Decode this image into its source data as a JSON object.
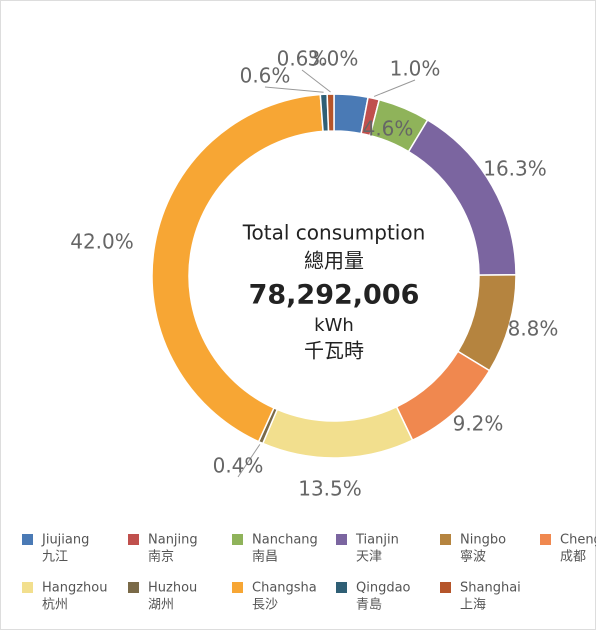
{
  "chart_data": {
    "type": "donut",
    "categories": [
      "Jiujiang",
      "Nanjing",
      "Nanchang",
      "Tianjin",
      "Ningbo",
      "Chengdu",
      "Hangzhou",
      "Huzhou",
      "Changsha",
      "Qingdao",
      "Shanghai"
    ],
    "categories_zh": [
      "九江",
      "南京",
      "南昌",
      "天津",
      "寧波",
      "成都",
      "杭州",
      "湖州",
      "長沙",
      "青島",
      "上海"
    ],
    "values": [
      3.0,
      1.0,
      4.6,
      16.3,
      8.8,
      9.2,
      13.5,
      0.4,
      42.0,
      0.6,
      0.6
    ],
    "value_labels": [
      "3.0%",
      "1.0%",
      "4.6%",
      "16.3%",
      "8.8%",
      "9.2%",
      "13.5%",
      "0.4%",
      "42.0%",
      "0.6%",
      "0.6%"
    ],
    "colors": [
      "#4a7ab5",
      "#c0504d",
      "#8fb35a",
      "#7b65a0",
      "#b5843f",
      "#f0884f",
      "#f2df8e",
      "#7a6a48",
      "#f7a634",
      "#2f5f75",
      "#b5552a"
    ],
    "center_text": {
      "line1": "Total consumption",
      "line2": "總用量",
      "total": "78,292,006",
      "unit": "kWh",
      "unit_zh": "千瓦時"
    },
    "legend": "bottom"
  }
}
